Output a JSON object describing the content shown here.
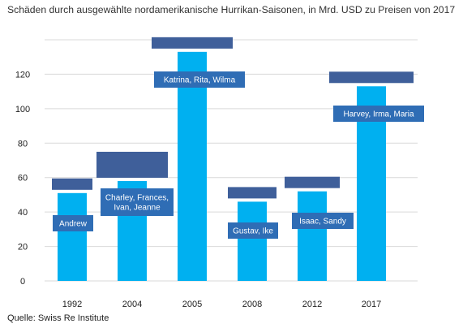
{
  "title": "Schäden durch ausgewählte nordamerikanische Hurrikan-Saisonen, in Mrd. USD zu Preisen von 2017",
  "source": "Quelle: Swiss Re Institute",
  "colors": {
    "bar": "#00b0f0",
    "label_box": "#2f6db5",
    "redaction": "#3f5f9a",
    "grid": "#d9d9d9"
  },
  "chart_data": {
    "type": "bar",
    "categories": [
      "1992",
      "2004",
      "2005",
      "2008",
      "2012",
      "2017"
    ],
    "values": [
      51,
      58,
      133,
      46,
      52,
      113
    ],
    "bar_labels": [
      [
        "Andrew"
      ],
      [
        "Charley, Frances,",
        "Ivan, Jeanne"
      ],
      [
        "Katrina, Rita, Wilma"
      ],
      [
        "Gustav, Ike"
      ],
      [
        "Isaac, Sandy"
      ],
      [
        "Harvey, Irma, Maria"
      ]
    ],
    "y_ticks": [
      "0",
      "20",
      "40",
      "60",
      "80",
      "100",
      "120"
    ],
    "ylim": [
      0,
      140
    ],
    "grid": true,
    "xlabel": "",
    "ylabel": ""
  }
}
